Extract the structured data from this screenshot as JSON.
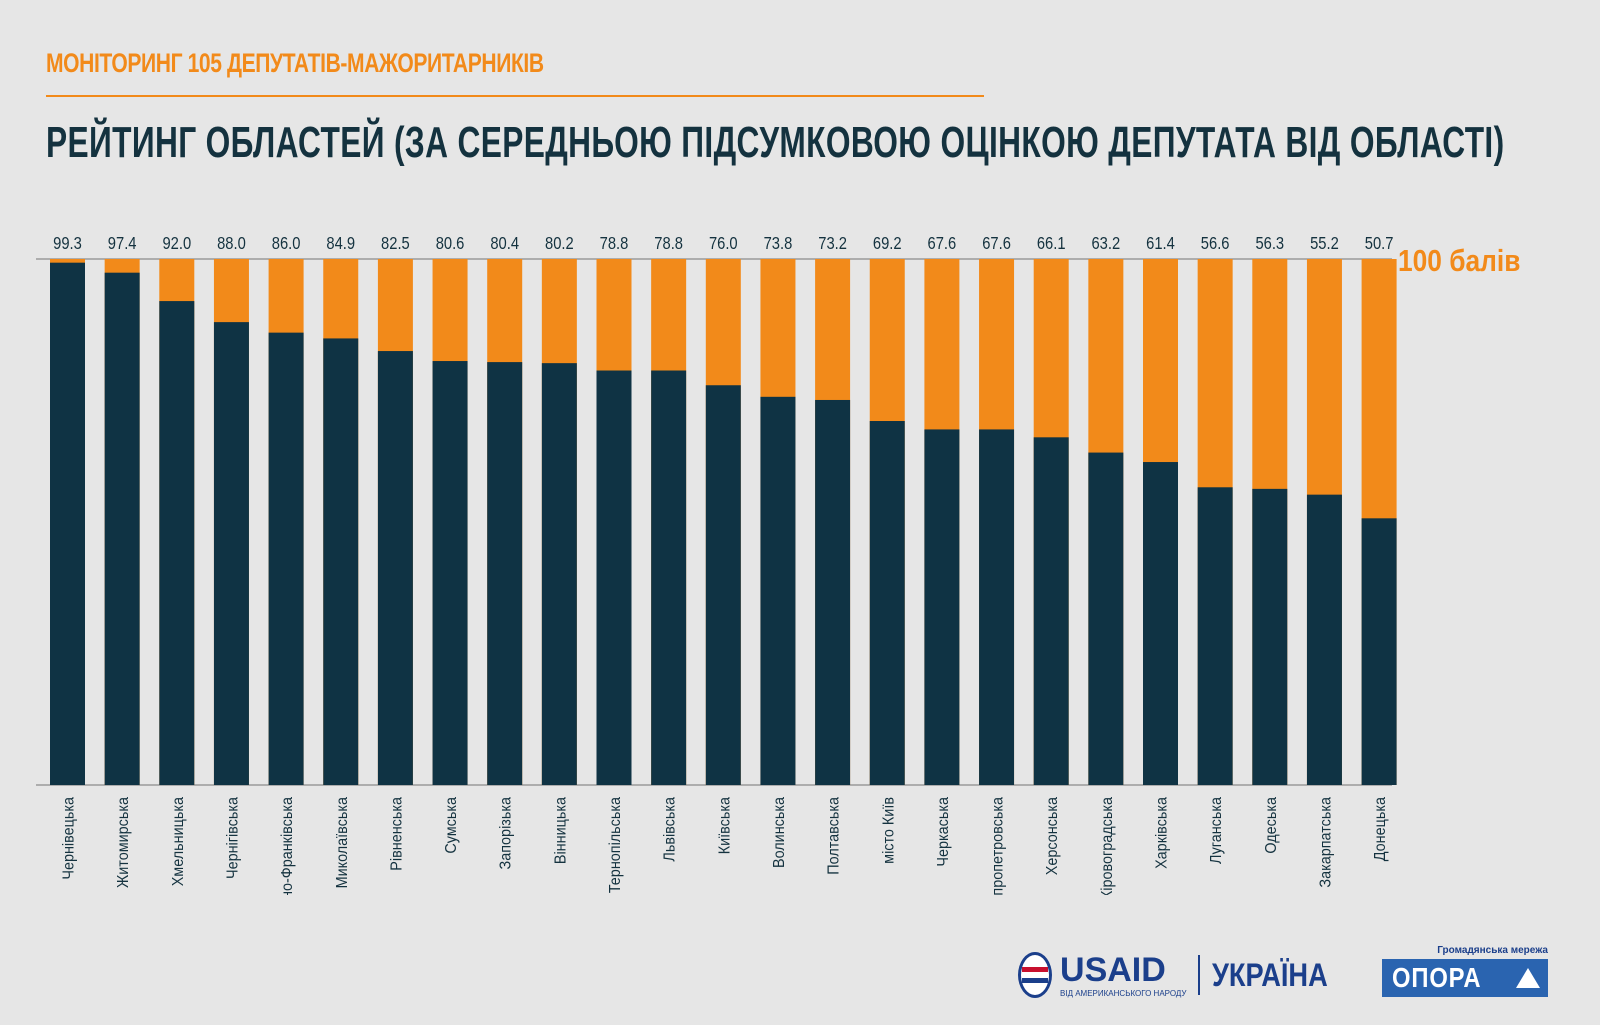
{
  "header": {
    "subtitle": "МОНІТОРИНГ 105 ДЕПУТАТІВ-МАЖОРИТАРНИКІВ",
    "title": "РЕЙТИНГ ОБЛАСТЕЙ (ЗА СЕРЕДНЬОЮ ПІДСУМКОВОЮ ОЦІНКОЮ ДЕПУТАТА ВІД ОБЛАСТІ)"
  },
  "chart_data": {
    "type": "bar",
    "stacked_to": 100,
    "categories": [
      "Чернівецька",
      "Житомирська",
      "Хмельницька",
      "Чернігівська",
      "Івано-Франківська",
      "Миколаївська",
      "Рівненська",
      "Сумська",
      "Запорізька",
      "Вінницька",
      "Тернопільська",
      "Львівська",
      "Київська",
      "Волинська",
      "Полтавська",
      "місто Київ",
      "Черкаська",
      "Дніпропетровська",
      "Херсонська",
      "Кіровоградська",
      "Харківська",
      "Луганська",
      "Одеська",
      "Закарпатська",
      "Донецька"
    ],
    "values": [
      99.3,
      97.4,
      92.0,
      88.0,
      86.0,
      84.9,
      82.5,
      80.6,
      80.4,
      80.2,
      78.8,
      78.8,
      76.0,
      73.8,
      73.2,
      69.2,
      67.6,
      67.6,
      66.1,
      63.2,
      61.4,
      56.6,
      56.3,
      55.2,
      50.7
    ],
    "value_labels": [
      "99.3",
      "97.4",
      "92.0",
      "88.0",
      "86.0",
      "84.9",
      "82.5",
      "80.6",
      "80.4",
      "80.2",
      "78.8",
      "78.8",
      "76.0",
      "73.8",
      "73.2",
      "69.2",
      "67.6",
      "67.6",
      "66.1",
      "63.2",
      "61.4",
      "56.6",
      "56.3",
      "55.2",
      "50.7"
    ],
    "max_label": "100 балів",
    "ylim": [
      0,
      100
    ],
    "colors": {
      "value": "#0f3344",
      "remainder": "#f28a1a",
      "axis": "#9a9a9a"
    }
  },
  "footer": {
    "usaid_word": "USAID",
    "usaid_tagline": "ВІД АМЕРИКАНСЬКОГО НАРОДУ",
    "usaid_country": "УКРАЇНА",
    "opora_caption": "Громадянська мережа",
    "opora_word": "ОПОРА"
  }
}
